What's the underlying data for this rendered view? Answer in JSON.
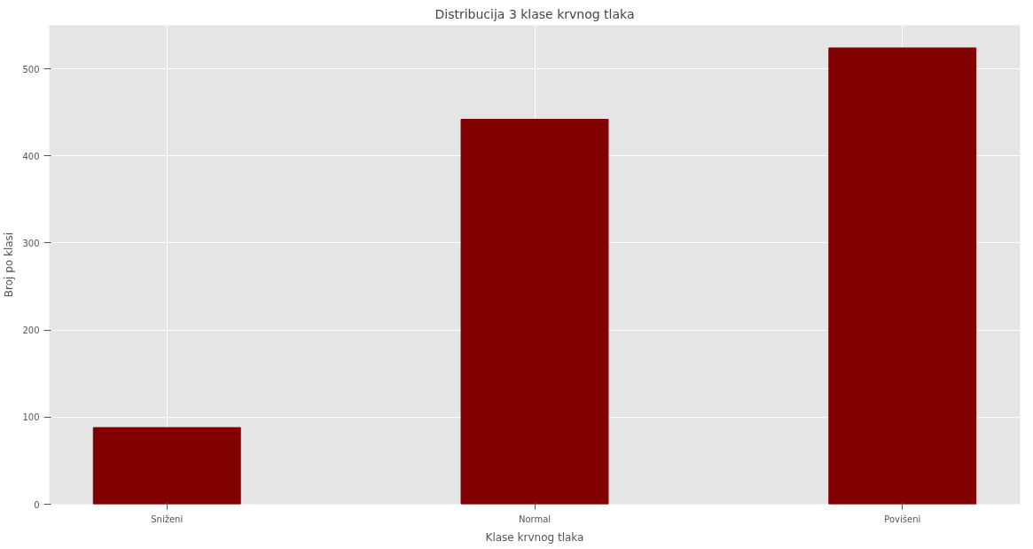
{
  "chart_data": {
    "type": "bar",
    "title": "Distribucija 3 klase krvnog tlaka",
    "xlabel": "Klase krvnog tlaka",
    "ylabel": "Broj po klasi",
    "categories": [
      "Sniženi",
      "Normal",
      "Povišeni"
    ],
    "values": [
      88,
      442,
      524
    ],
    "color": "#800000",
    "ylim": [
      0,
      550
    ],
    "yticks": [
      0,
      100,
      200,
      300,
      400,
      500
    ],
    "grid": true
  }
}
